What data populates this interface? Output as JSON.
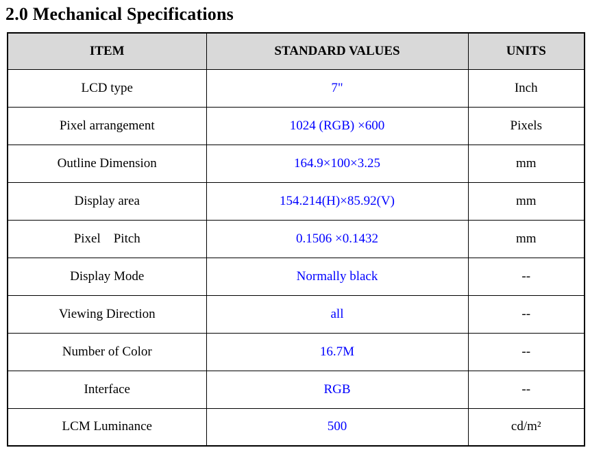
{
  "page": {
    "title": "2.0 Mechanical Specifications"
  },
  "colors": {
    "value_text": "#0000FF",
    "header_bg": "#D9D9D9",
    "border_color": "#000000",
    "text_color": "#000000",
    "page_bg": "#FFFFFF"
  },
  "table": {
    "columns": {
      "item": "ITEM",
      "value": "STANDARD VALUES",
      "units": "UNITS"
    },
    "rows": [
      {
        "item": "LCD type",
        "value": "7\"",
        "units": "Inch"
      },
      {
        "item": "Pixel arrangement",
        "value": "1024 (RGB) ×600",
        "units": "Pixels"
      },
      {
        "item": "Outline Dimension",
        "value": "164.9×100×3.25",
        "units": "mm"
      },
      {
        "item": "Display area",
        "value": "154.214(H)×85.92(V)",
        "units": "mm"
      },
      {
        "item": "Pixel    Pitch",
        "value": "0.1506 ×0.1432",
        "units": "mm"
      },
      {
        "item": "Display Mode",
        "value": "Normally black",
        "units": "--"
      },
      {
        "item": "Viewing Direction",
        "value": "all",
        "units": "--"
      },
      {
        "item": "Number of Color",
        "value": "16.7M",
        "units": "--"
      },
      {
        "item": "Interface",
        "value": "RGB",
        "units": "--"
      },
      {
        "item": "LCM Luminance",
        "value": "500",
        "units": "cd/m²"
      }
    ]
  }
}
